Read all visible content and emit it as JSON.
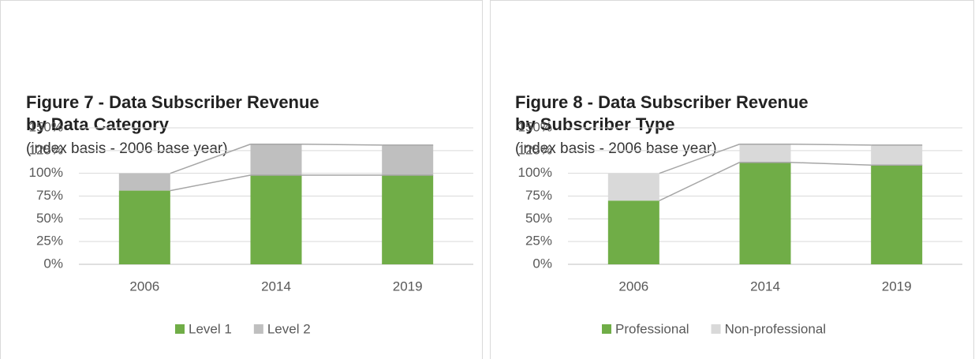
{
  "chart_data": [
    {
      "type": "stacked_bar",
      "title": [
        "Figure 7 - Data Subscriber Revenue",
        "by Data Category"
      ],
      "subtitle": "(index basis - 2006 base year)",
      "categories": [
        "2006",
        "2014",
        "2019"
      ],
      "series": [
        {
          "name": "Level 1",
          "color": "#70ad47",
          "values": [
            81,
            98,
            98
          ]
        },
        {
          "name": "Level 2",
          "color": "#bfbfbf",
          "values": [
            19,
            34,
            33
          ]
        }
      ],
      "ylim": [
        0,
        150
      ],
      "yticks": [
        {
          "value": 0,
          "label": "0%"
        },
        {
          "value": 25,
          "label": "25%"
        },
        {
          "value": 50,
          "label": "50%"
        },
        {
          "value": 75,
          "label": "75%"
        },
        {
          "value": 100,
          "label": "100%"
        },
        {
          "value": 125,
          "label": "125%"
        },
        {
          "value": 150,
          "label": "150%"
        }
      ],
      "grid": true,
      "legend": "bottom"
    },
    {
      "type": "stacked_bar",
      "title": [
        "Figure 8 - Data Subscriber Revenue",
        "by Subscriber Type"
      ],
      "subtitle": "(index basis - 2006 base year)",
      "categories": [
        "2006",
        "2014",
        "2019"
      ],
      "series": [
        {
          "name": "Professional",
          "color": "#70ad47",
          "values": [
            70,
            112,
            109
          ]
        },
        {
          "name": "Non-professional",
          "color": "#d9d9d9",
          "values": [
            30,
            20,
            22
          ]
        }
      ],
      "ylim": [
        0,
        150
      ],
      "yticks": [
        {
          "value": 0,
          "label": "0%"
        },
        {
          "value": 25,
          "label": "25%"
        },
        {
          "value": 50,
          "label": "50%"
        },
        {
          "value": 75,
          "label": "75%"
        },
        {
          "value": 100,
          "label": "100%"
        },
        {
          "value": 125,
          "label": "125%"
        },
        {
          "value": 150,
          "label": "150%"
        }
      ],
      "grid": true,
      "legend": "bottom"
    }
  ]
}
